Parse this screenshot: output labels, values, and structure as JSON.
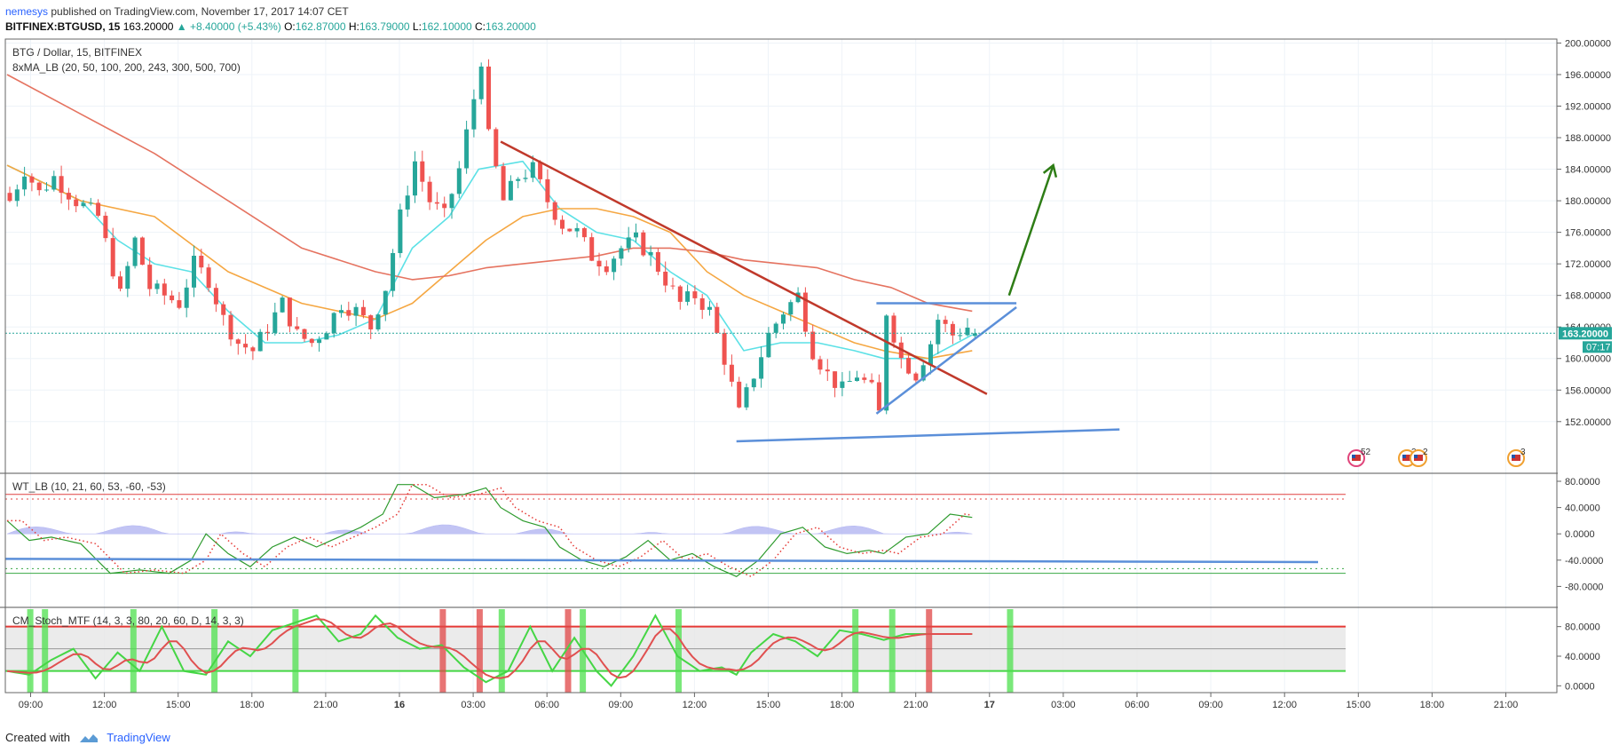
{
  "header": {
    "user": "nemesys",
    "published": "published on TradingView.com, November 17, 2017 14:07 CET",
    "symbol": "BITFINEX:BTGUSD, 15",
    "last": "163.20000",
    "change": "▲ +8.40000 (+5.43%)",
    "o_label": "O:",
    "o_value": "162.87000",
    "h_label": "H:",
    "h_value": "163.79000",
    "l_label": "L:",
    "l_value": "162.10000",
    "c_label": "C:",
    "c_value": "163.20000"
  },
  "main_pane": {
    "title": "BTG / Dollar, 15, BITFINEX",
    "indicator": "8xMA_LB (20, 50, 100, 200, 243, 300, 500, 700)",
    "price_tag": "163.20000",
    "countdown_tag": "07:17",
    "event_badges": [
      "52",
      "2",
      "2",
      "3"
    ]
  },
  "wt_pane": {
    "title": "WT_LB (10, 21, 60, 53, -60, -53)"
  },
  "stoch_pane": {
    "title": "CM_Stoch_MTF (14, 3, 3, 80, 20, 60, D, 14, 3, 3)"
  },
  "footer": {
    "created_with": "Created with",
    "brand": "TradingView"
  },
  "colors": {
    "up": "#26a69a",
    "down": "#ef5350",
    "ma_fast": "#5ce1e6",
    "ma_mid": "#f5a742",
    "ma_slow": "#e57360",
    "trend_red": "#c0392b",
    "trend_blue": "#5b8fd9",
    "arrow_green": "#2e7d16"
  },
  "chart_data": [
    {
      "type": "candlestick",
      "title": "BTG / Dollar, 15, BITFINEX",
      "x_ticks": [
        "09:00",
        "12:00",
        "15:00",
        "18:00",
        "21:00",
        "16",
        "03:00",
        "06:00",
        "09:00",
        "12:00",
        "15:00",
        "18:00",
        "21:00",
        "17",
        "03:00",
        "06:00",
        "09:00",
        "12:00",
        "15:00",
        "18:00",
        "21:00"
      ],
      "y_ticks": [
        "152.00000",
        "156.00000",
        "160.00000",
        "164.00000",
        "168.00000",
        "172.00000",
        "176.00000",
        "180.00000",
        "184.00000",
        "188.00000",
        "192.00000",
        "196.00000",
        "200.00000"
      ],
      "ylim": [
        149.5,
        200.5
      ],
      "last_price": 163.2,
      "close_path": [
        [
          0,
          180
        ],
        [
          2,
          184
        ],
        [
          4,
          181
        ],
        [
          6,
          183
        ],
        [
          9,
          180
        ],
        [
          12,
          178
        ],
        [
          15,
          168
        ],
        [
          17,
          175
        ],
        [
          19,
          169
        ],
        [
          21,
          168
        ],
        [
          23,
          167
        ],
        [
          25,
          172
        ],
        [
          27,
          170
        ],
        [
          29,
          165
        ],
        [
          31,
          162
        ],
        [
          33,
          161
        ],
        [
          35,
          164
        ],
        [
          37,
          167
        ],
        [
          39,
          163
        ],
        [
          41,
          162
        ],
        [
          43,
          164
        ],
        [
          45,
          167
        ],
        [
          47,
          166
        ],
        [
          49,
          164
        ],
        [
          51,
          169
        ],
        [
          53,
          178
        ],
        [
          55,
          185
        ],
        [
          57,
          180
        ],
        [
          59,
          178
        ],
        [
          61,
          184
        ],
        [
          63,
          193
        ],
        [
          64,
          198
        ],
        [
          65,
          188
        ],
        [
          67,
          180
        ],
        [
          69,
          183
        ],
        [
          71,
          184
        ],
        [
          73,
          180
        ],
        [
          75,
          177
        ],
        [
          77,
          176
        ],
        [
          79,
          173
        ],
        [
          81,
          172
        ],
        [
          83,
          174
        ],
        [
          85,
          175
        ],
        [
          87,
          173
        ],
        [
          89,
          170
        ],
        [
          91,
          167
        ],
        [
          93,
          168
        ],
        [
          95,
          166
        ],
        [
          97,
          160
        ],
        [
          99,
          153
        ],
        [
          101,
          158
        ],
        [
          103,
          163
        ],
        [
          105,
          166
        ],
        [
          107,
          168
        ],
        [
          109,
          161
        ],
        [
          111,
          158
        ],
        [
          113,
          156
        ],
        [
          115,
          158
        ],
        [
          117,
          156
        ],
        [
          118,
          153
        ],
        [
          119,
          166
        ],
        [
          121,
          160
        ],
        [
          123,
          158
        ],
        [
          125,
          162
        ],
        [
          126,
          165
        ],
        [
          128,
          163
        ],
        [
          130,
          164
        ],
        [
          131,
          163.2
        ]
      ],
      "ma_series": [
        {
          "name": "MA 20",
          "points": [
            [
              0,
              184.5
            ],
            [
              10,
              180
            ],
            [
              15,
              175
            ],
            [
              20,
              172
            ],
            [
              25,
              171
            ],
            [
              30,
              166
            ],
            [
              35,
              162
            ],
            [
              40,
              162
            ],
            [
              45,
              163
            ],
            [
              50,
              165
            ],
            [
              55,
              174
            ],
            [
              60,
              178
            ],
            [
              64,
              184
            ],
            [
              70,
              185
            ],
            [
              75,
              179
            ],
            [
              80,
              176
            ],
            [
              85,
              175
            ],
            [
              90,
              171
            ],
            [
              95,
              168
            ],
            [
              100,
              161
            ],
            [
              105,
              162
            ],
            [
              110,
              162
            ],
            [
              115,
              161
            ],
            [
              119,
              160
            ],
            [
              125,
              160
            ],
            [
              131,
              163
            ]
          ]
        },
        {
          "name": "MA 100",
          "points": [
            [
              0,
              184.5
            ],
            [
              10,
              180
            ],
            [
              20,
              178
            ],
            [
              30,
              171
            ],
            [
              40,
              167
            ],
            [
              50,
              165
            ],
            [
              55,
              167
            ],
            [
              60,
              171
            ],
            [
              65,
              175
            ],
            [
              70,
              178
            ],
            [
              75,
              179
            ],
            [
              80,
              179
            ],
            [
              85,
              178
            ],
            [
              90,
              176
            ],
            [
              95,
              171
            ],
            [
              100,
              168
            ],
            [
              105,
              166
            ],
            [
              110,
              164
            ],
            [
              115,
              162
            ],
            [
              119,
              161
            ],
            [
              125,
              160
            ],
            [
              131,
              161
            ]
          ]
        },
        {
          "name": "MA 200",
          "points": [
            [
              0,
              196
            ],
            [
              10,
              191
            ],
            [
              20,
              186
            ],
            [
              30,
              180
            ],
            [
              40,
              174
            ],
            [
              50,
              171
            ],
            [
              55,
              170
            ],
            [
              60,
              170.5
            ],
            [
              65,
              171.5
            ],
            [
              70,
              172
            ],
            [
              75,
              172.5
            ],
            [
              80,
              173
            ],
            [
              85,
              174
            ],
            [
              90,
              174
            ],
            [
              95,
              173.5
            ],
            [
              100,
              172.5
            ],
            [
              105,
              172
            ],
            [
              110,
              171.5
            ],
            [
              115,
              170
            ],
            [
              120,
              169
            ],
            [
              125,
              167
            ],
            [
              131,
              166
            ]
          ]
        }
      ],
      "drawings": [
        {
          "name": "descending trendline",
          "from": [
            67,
            187.5
          ],
          "to": [
            133,
            155.5
          ]
        },
        {
          "name": "resistance line",
          "from": [
            118,
            167
          ],
          "to": [
            137,
            167
          ]
        },
        {
          "name": "rising support line",
          "from": [
            118,
            153
          ],
          "to": [
            137,
            166.5
          ]
        },
        {
          "name": "long support line",
          "from": [
            99,
            149.5
          ],
          "to": [
            151,
            151
          ]
        },
        {
          "name": "breakout arrow",
          "from": [
            136,
            168
          ],
          "to": [
            142,
            184.5
          ]
        }
      ]
    },
    {
      "type": "line",
      "title": "WT_LB (10, 21, 60, 53, -60, -53)",
      "y_ticks": [
        "80.0000",
        "40.0000",
        "0.0000",
        "-40.0000",
        "-80.0000"
      ],
      "ylim": [
        -80,
        80
      ],
      "levels": [
        60,
        53,
        -53,
        -60
      ],
      "wt1": [
        [
          0,
          20
        ],
        [
          3,
          -10
        ],
        [
          6,
          -5
        ],
        [
          10,
          -15
        ],
        [
          14,
          -60
        ],
        [
          18,
          -55
        ],
        [
          22,
          -60
        ],
        [
          25,
          -40
        ],
        [
          27,
          0
        ],
        [
          30,
          -30
        ],
        [
          33,
          -50
        ],
        [
          36,
          -20
        ],
        [
          39,
          -5
        ],
        [
          42,
          -20
        ],
        [
          45,
          -5
        ],
        [
          48,
          10
        ],
        [
          51,
          30
        ],
        [
          53,
          75
        ],
        [
          55,
          75
        ],
        [
          58,
          55
        ],
        [
          62,
          60
        ],
        [
          65,
          70
        ],
        [
          67,
          40
        ],
        [
          70,
          20
        ],
        [
          73,
          10
        ],
        [
          75,
          -20
        ],
        [
          78,
          -40
        ],
        [
          81,
          -50
        ],
        [
          84,
          -35
        ],
        [
          87,
          -10
        ],
        [
          90,
          -40
        ],
        [
          93,
          -30
        ],
        [
          96,
          -50
        ],
        [
          99,
          -65
        ],
        [
          102,
          -40
        ],
        [
          105,
          0
        ],
        [
          108,
          10
        ],
        [
          111,
          -20
        ],
        [
          114,
          -30
        ],
        [
          117,
          -25
        ],
        [
          119,
          -30
        ],
        [
          122,
          -5
        ],
        [
          125,
          0
        ],
        [
          128,
          30
        ],
        [
          131,
          25
        ]
      ]
    },
    {
      "type": "line",
      "title": "CM_Stoch_MTF (14, 3, 3, 80, 20, 60, D, 14, 3, 3)",
      "y_ticks": [
        "80.0000",
        "40.0000",
        "0.0000"
      ],
      "ylim": [
        -8,
        100
      ],
      "levels": [
        80,
        50,
        20
      ],
      "k": [
        [
          0,
          20
        ],
        [
          3,
          15
        ],
        [
          6,
          35
        ],
        [
          9,
          50
        ],
        [
          12,
          10
        ],
        [
          15,
          45
        ],
        [
          18,
          20
        ],
        [
          21,
          80
        ],
        [
          24,
          20
        ],
        [
          27,
          15
        ],
        [
          30,
          60
        ],
        [
          33,
          40
        ],
        [
          36,
          75
        ],
        [
          39,
          85
        ],
        [
          42,
          95
        ],
        [
          45,
          60
        ],
        [
          48,
          70
        ],
        [
          50,
          95
        ],
        [
          53,
          65
        ],
        [
          56,
          50
        ],
        [
          59,
          55
        ],
        [
          62,
          25
        ],
        [
          65,
          5
        ],
        [
          68,
          20
        ],
        [
          71,
          80
        ],
        [
          74,
          20
        ],
        [
          77,
          65
        ],
        [
          80,
          20
        ],
        [
          82,
          0
        ],
        [
          85,
          40
        ],
        [
          88,
          95
        ],
        [
          91,
          40
        ],
        [
          94,
          20
        ],
        [
          97,
          25
        ],
        [
          99,
          15
        ],
        [
          101,
          45
        ],
        [
          104,
          70
        ],
        [
          107,
          60
        ],
        [
          110,
          40
        ],
        [
          113,
          75
        ],
        [
          116,
          70
        ],
        [
          119,
          62
        ],
        [
          122,
          70
        ]
      ]
    }
  ]
}
